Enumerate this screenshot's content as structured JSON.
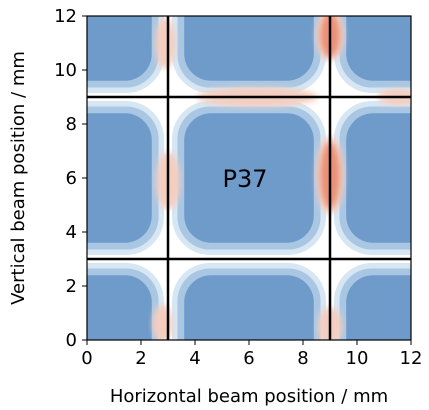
{
  "chart_data": {
    "type": "heatmap",
    "xlabel": "Horizontal beam position / mm",
    "ylabel": "Vertical beam position / mm",
    "xlim": [
      0,
      12
    ],
    "ylim": [
      0,
      12
    ],
    "x_ticks": [
      "0",
      "2",
      "4",
      "6",
      "8",
      "10",
      "12"
    ],
    "y_ticks": [
      "0",
      "2",
      "4",
      "6",
      "8",
      "10",
      "12"
    ],
    "x_tick_values": [
      0,
      2,
      4,
      6,
      8,
      10,
      12
    ],
    "y_tick_values": [
      0,
      2,
      4,
      6,
      8,
      10,
      12
    ],
    "annotation": {
      "text": "P37",
      "x": 6,
      "y": 6
    },
    "grid_lines": {
      "vertical": [
        3,
        9
      ],
      "horizontal": [
        3,
        9
      ]
    },
    "colors": {
      "cell": "#6f9bcb",
      "mid": "#a9c7e3",
      "light": "#d6e6f3",
      "gap": "#ffffff",
      "hot_light": "#f4cdbf",
      "hot": "#e99074",
      "line": "#000000"
    },
    "hotspots": [
      {
        "x": 9.0,
        "y": 11.3,
        "rx": 0.35,
        "ry": 0.8,
        "level": "hot"
      },
      {
        "x": 9.0,
        "y": 6.1,
        "rx": 0.35,
        "ry": 1.2,
        "level": "hot"
      },
      {
        "x": 9.0,
        "y": 0.5,
        "rx": 0.3,
        "ry": 0.6,
        "level": "hot_light"
      },
      {
        "x": 6.3,
        "y": 9.0,
        "rx": 1.5,
        "ry": 0.3,
        "level": "hot_light"
      },
      {
        "x": 2.9,
        "y": 11.0,
        "rx": 0.25,
        "ry": 0.8,
        "level": "hot_light"
      },
      {
        "x": 3.0,
        "y": 5.9,
        "rx": 0.3,
        "ry": 0.9,
        "level": "hot_light"
      },
      {
        "x": 2.8,
        "y": 0.6,
        "rx": 0.25,
        "ry": 0.6,
        "level": "hot_light"
      },
      {
        "x": 11.5,
        "y": 9.0,
        "rx": 0.5,
        "ry": 0.25,
        "level": "hot_light"
      }
    ]
  }
}
